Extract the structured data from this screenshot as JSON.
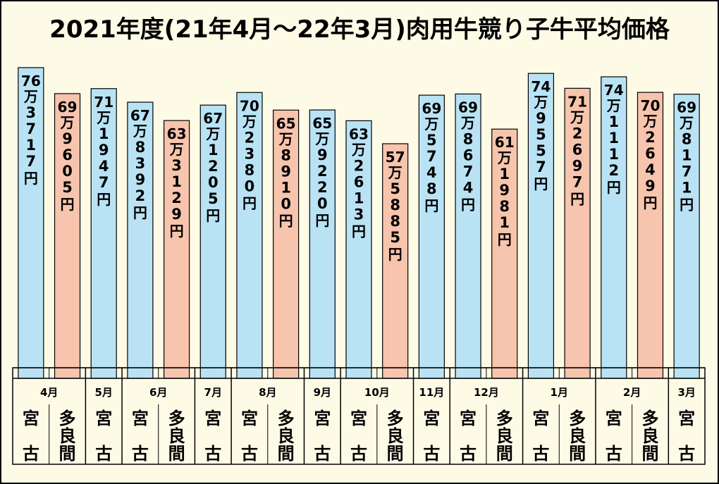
{
  "colors": {
    "background": "#fdfbe6",
    "miyako": "#b9e3f5",
    "tarama": "#f7c4ad",
    "border": "#000000"
  },
  "chart_data": {
    "type": "bar",
    "title": "2021年度(21年4月～22年3月)肉用牛競り子牛平均価格",
    "unit": "円",
    "series": [
      {
        "name": "宮古",
        "color": "#b9e3f5"
      },
      {
        "name": "多良間",
        "color": "#f7c4ad"
      }
    ],
    "months": [
      {
        "label": "4月",
        "bars": [
          "miyako",
          "tarama"
        ]
      },
      {
        "label": "5月",
        "bars": [
          "miyako"
        ]
      },
      {
        "label": "6月",
        "bars": [
          "miyako",
          "tarama"
        ]
      },
      {
        "label": "7月",
        "bars": [
          "miyako"
        ]
      },
      {
        "label": "8月",
        "bars": [
          "miyako",
          "tarama"
        ]
      },
      {
        "label": "9月",
        "bars": [
          "miyako"
        ]
      },
      {
        "label": "10月",
        "bars": [
          "miyako",
          "tarama"
        ]
      },
      {
        "label": "11月",
        "bars": [
          "miyako"
        ]
      },
      {
        "label": "12月",
        "bars": [
          "miyako",
          "tarama"
        ]
      },
      {
        "label": "1月",
        "bars": [
          "miyako",
          "tarama"
        ]
      },
      {
        "label": "2月",
        "bars": [
          "miyako",
          "tarama"
        ]
      },
      {
        "label": "3月",
        "bars": [
          "miyako"
        ]
      }
    ],
    "bars": [
      {
        "month": "4月",
        "place": "宮古",
        "series": "miyako",
        "value": 763717,
        "man": "76",
        "rest": "3717"
      },
      {
        "month": "4月",
        "place": "多良間",
        "series": "tarama",
        "value": 699605,
        "man": "69",
        "rest": "9605"
      },
      {
        "month": "5月",
        "place": "宮古",
        "series": "miyako",
        "value": 711947,
        "man": "71",
        "rest": "1947"
      },
      {
        "month": "6月",
        "place": "宮古",
        "series": "miyako",
        "value": 678392,
        "man": "67",
        "rest": "8392"
      },
      {
        "month": "6月",
        "place": "多良間",
        "series": "tarama",
        "value": 633129,
        "man": "63",
        "rest": "3129"
      },
      {
        "month": "7月",
        "place": "宮古",
        "series": "miyako",
        "value": 671205,
        "man": "67",
        "rest": "1205"
      },
      {
        "month": "8月",
        "place": "宮古",
        "series": "miyako",
        "value": 702380,
        "man": "70",
        "rest": "2380"
      },
      {
        "month": "8月",
        "place": "多良間",
        "series": "tarama",
        "value": 658910,
        "man": "65",
        "rest": "8910"
      },
      {
        "month": "9月",
        "place": "宮古",
        "series": "miyako",
        "value": 659220,
        "man": "65",
        "rest": "9220"
      },
      {
        "month": "10月",
        "place": "宮古",
        "series": "miyako",
        "value": 632613,
        "man": "63",
        "rest": "2613"
      },
      {
        "month": "10月",
        "place": "多良間",
        "series": "tarama",
        "value": 575885,
        "man": "57",
        "rest": "5885"
      },
      {
        "month": "11月",
        "place": "宮古",
        "series": "miyako",
        "value": 695748,
        "man": "69",
        "rest": "5748"
      },
      {
        "month": "12月",
        "place": "宮古",
        "series": "miyako",
        "value": 698674,
        "man": "69",
        "rest": "8674"
      },
      {
        "month": "12月",
        "place": "多良間",
        "series": "tarama",
        "value": 611981,
        "man": "61",
        "rest": "1981"
      },
      {
        "month": "1月",
        "place": "宮古",
        "series": "miyako",
        "value": 749557,
        "man": "74",
        "rest": "9557"
      },
      {
        "month": "1月",
        "place": "多良間",
        "series": "tarama",
        "value": 712697,
        "man": "71",
        "rest": "2697"
      },
      {
        "month": "2月",
        "place": "宮古",
        "series": "miyako",
        "value": 741112,
        "man": "74",
        "rest": "1112"
      },
      {
        "month": "2月",
        "place": "多良間",
        "series": "tarama",
        "value": 702649,
        "man": "70",
        "rest": "2649"
      },
      {
        "month": "3月",
        "place": "宮古",
        "series": "miyako",
        "value": 698171,
        "man": "69",
        "rest": "8171"
      }
    ]
  }
}
